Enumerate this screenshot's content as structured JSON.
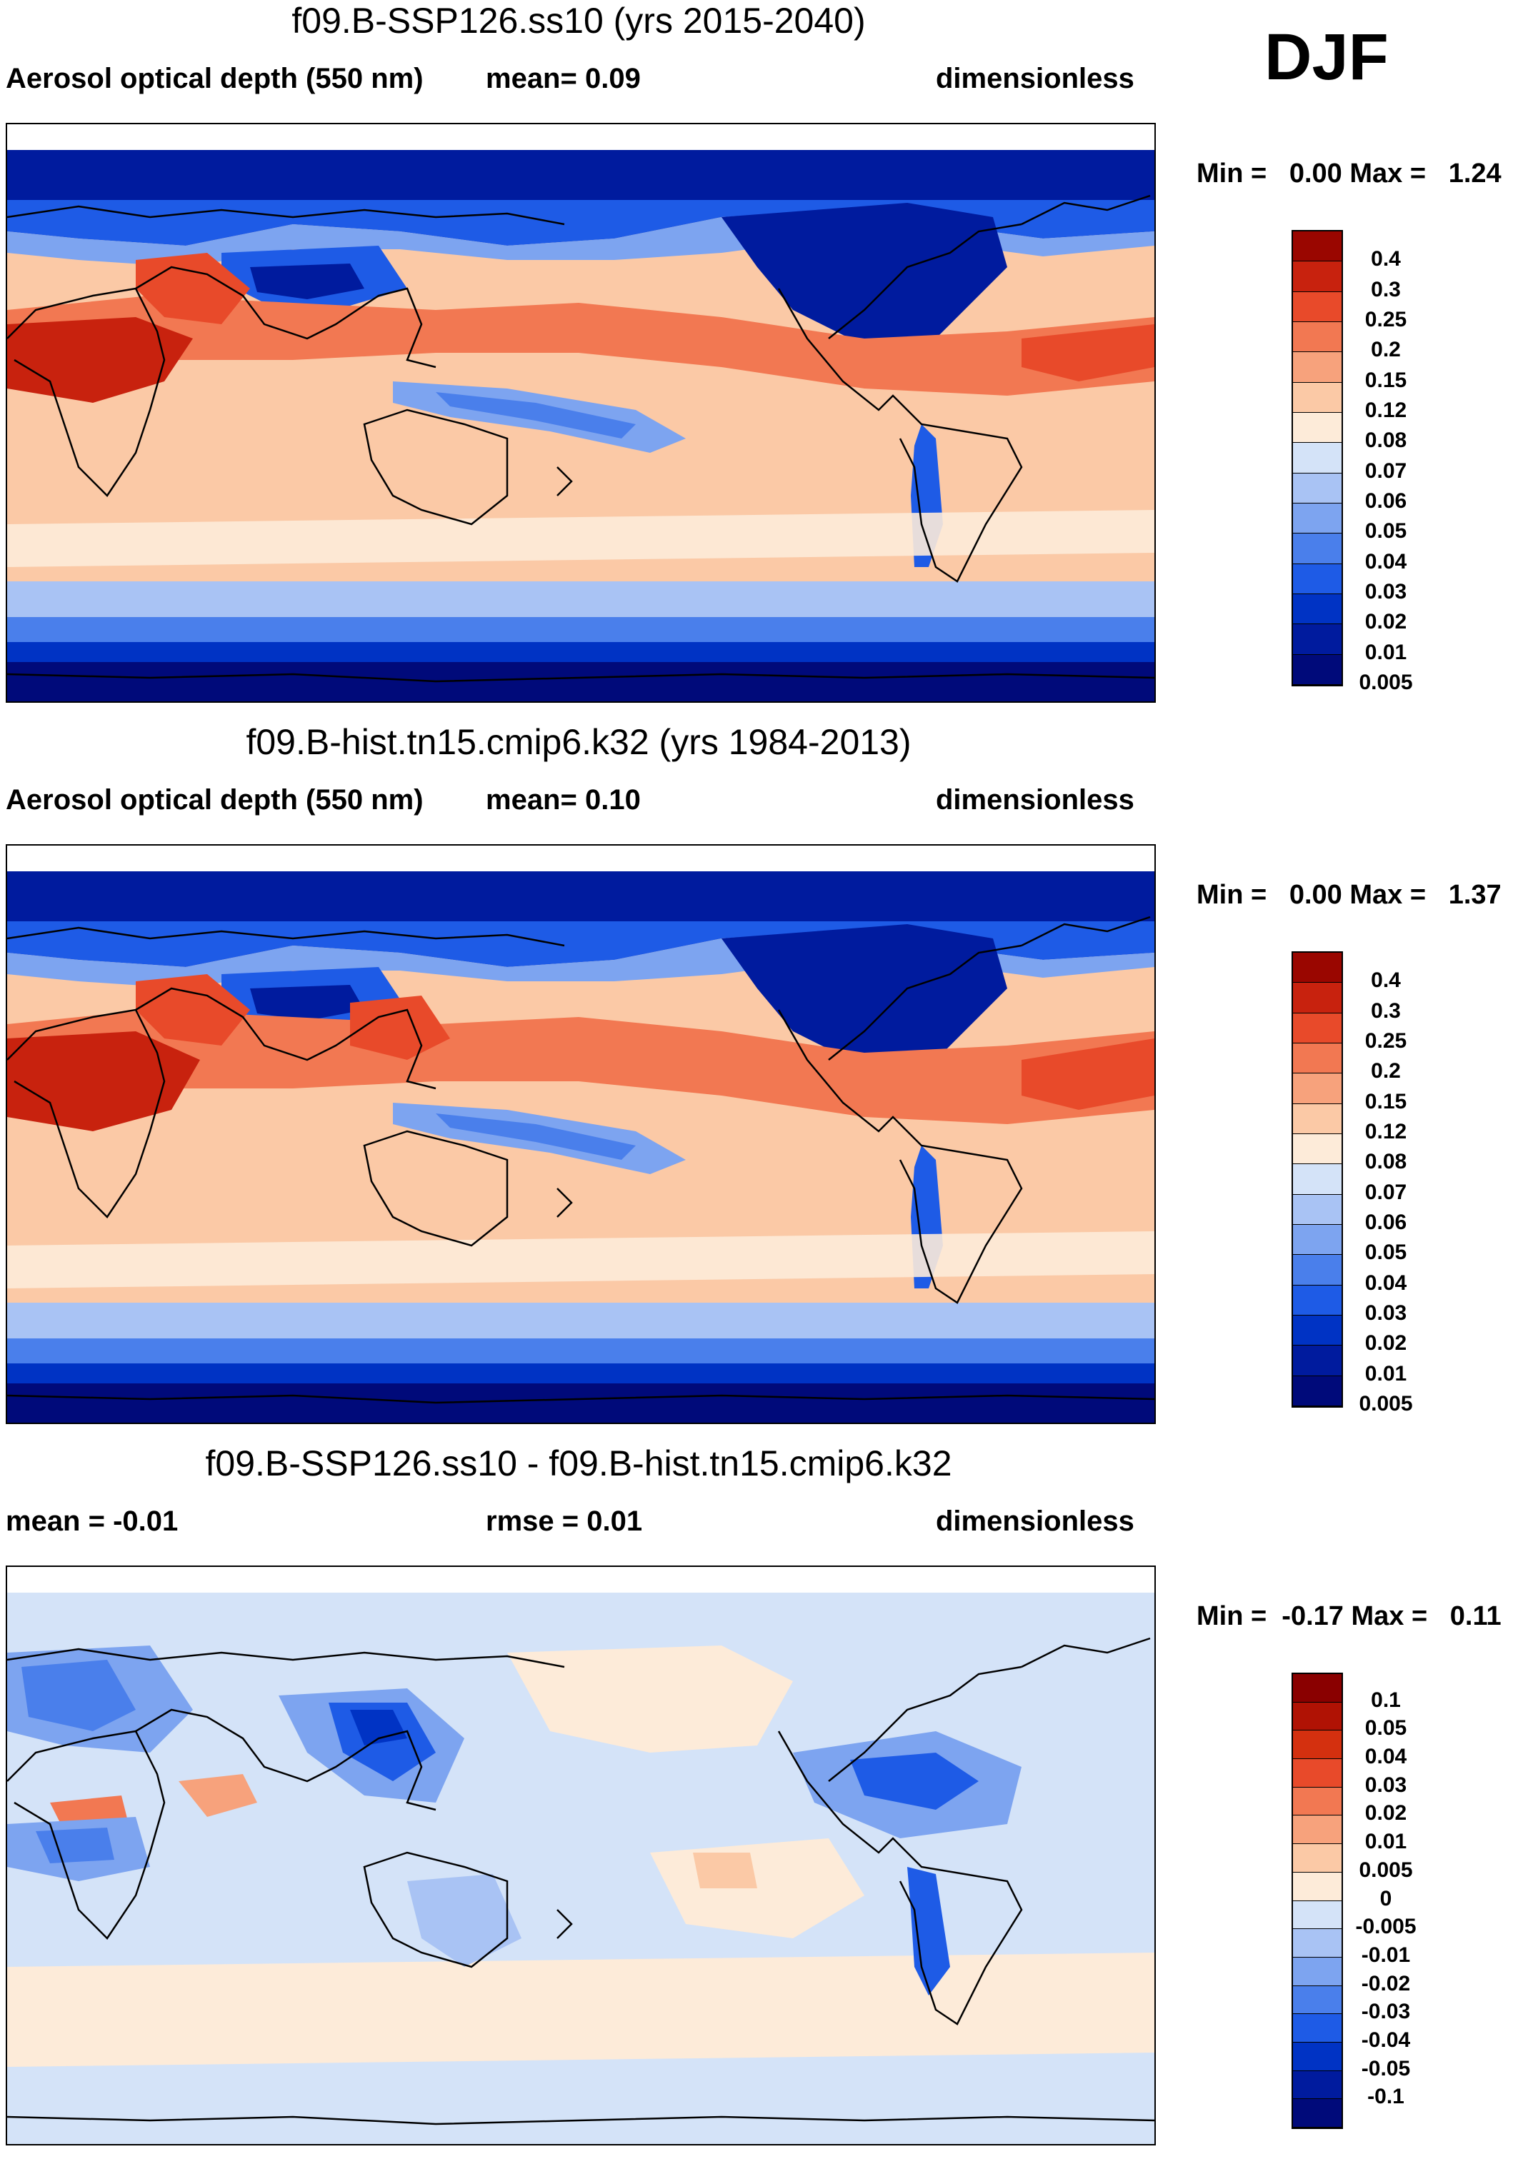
{
  "season": "DJF",
  "colors": {
    "scale14": [
      "#000A7A",
      "#001B9E",
      "#0033C4",
      "#1E5BE6",
      "#4A7FEB",
      "#7DA4F0",
      "#A9C3F4",
      "#D4E3F8",
      "#FDEBD9",
      "#FBC9A6",
      "#F7A27C",
      "#F27852",
      "#E84A2A",
      "#C8220E",
      "#9A0600"
    ],
    "diff16": [
      "#000A7A",
      "#001B9E",
      "#0033C4",
      "#1E5BE6",
      "#4A7FEB",
      "#7DA4F0",
      "#A9C3F4",
      "#D4E3F8",
      "#FDEBD9",
      "#FBC9A6",
      "#F7A27C",
      "#F27852",
      "#E84A2A",
      "#D4300F",
      "#B01204",
      "#8A0000"
    ]
  },
  "panels": [
    {
      "title": "f09.B-SSP126.ss10 (yrs 2015-2040)",
      "left_label": "Aerosol optical depth (550 nm)",
      "mid_label": "mean=   0.09",
      "right_label": "dimensionless",
      "minmax": "Min =   0.00 Max =   1.24",
      "colorbar_levels": [
        "0.4",
        "0.3",
        "0.25",
        "0.2",
        "0.15",
        "0.12",
        "0.08",
        "0.07",
        "0.06",
        "0.05",
        "0.04",
        "0.03",
        "0.02",
        "0.01",
        "0.005"
      ]
    },
    {
      "title": "f09.B-hist.tn15.cmip6.k32 (yrs 1984-2013)",
      "left_label": "Aerosol optical depth (550 nm)",
      "mid_label": "mean=   0.10",
      "right_label": "dimensionless",
      "minmax": "Min =   0.00 Max =   1.37",
      "colorbar_levels": [
        "0.4",
        "0.3",
        "0.25",
        "0.2",
        "0.15",
        "0.12",
        "0.08",
        "0.07",
        "0.06",
        "0.05",
        "0.04",
        "0.03",
        "0.02",
        "0.01",
        "0.005"
      ]
    },
    {
      "title": "f09.B-SSP126.ss10 - f09.B-hist.tn15.cmip6.k32",
      "left_label": "mean =  -0.01",
      "mid_label": "rmse =   0.01",
      "right_label": "dimensionless",
      "minmax": "Min =  -0.17 Max =   0.11",
      "colorbar_levels": [
        "0.1",
        "0.05",
        "0.04",
        "0.03",
        "0.02",
        "0.01",
        "0.005",
        "0",
        "-0.005",
        "-0.01",
        "-0.02",
        "-0.03",
        "-0.04",
        "-0.05",
        "-0.1"
      ]
    }
  ]
}
